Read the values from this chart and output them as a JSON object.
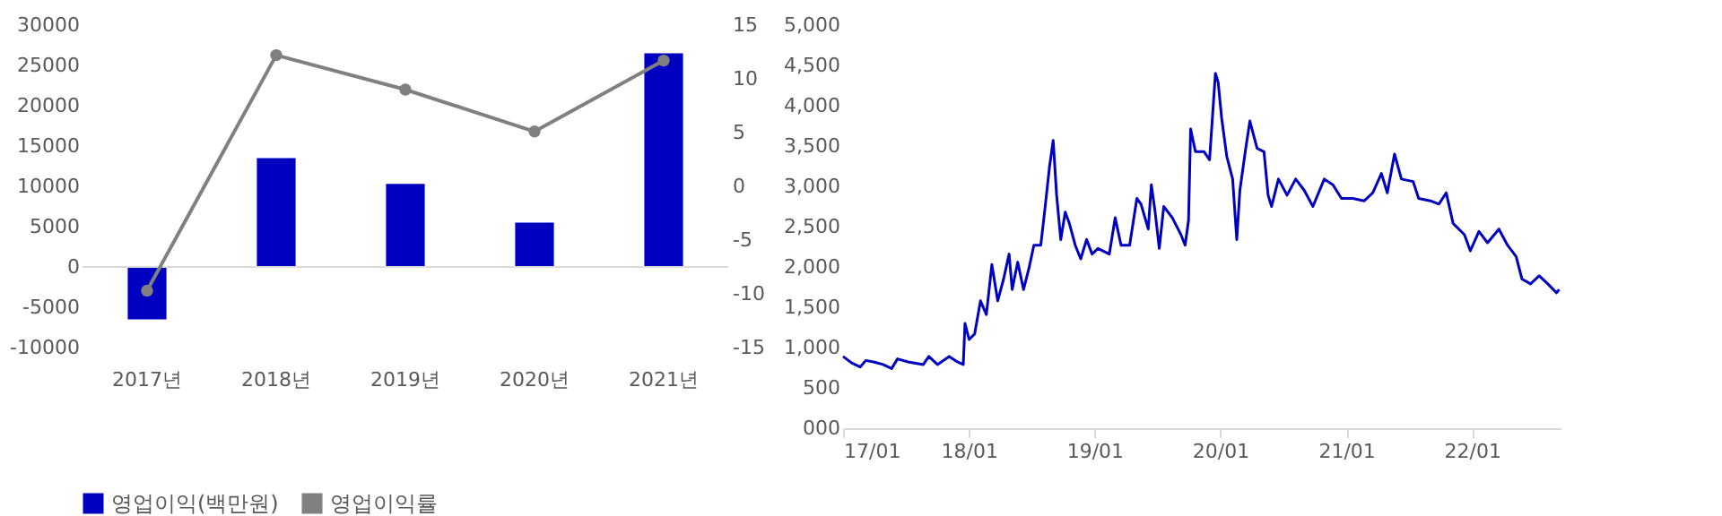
{
  "chart_data": [
    {
      "type": "bar",
      "categories": [
        "2017년",
        "2018년",
        "2019년",
        "2020년",
        "2021년"
      ],
      "series": [
        {
          "name": "영업이익(백만원)",
          "type": "bar",
          "color": "#0000c0",
          "values": [
            -6500,
            13500,
            10300,
            5500,
            26500
          ]
        },
        {
          "name": "영업이익률",
          "type": "line",
          "axis": "y2",
          "color": "#808080",
          "values": [
            -9.7,
            12.2,
            9.0,
            5.1,
            11.7
          ]
        }
      ],
      "marker": "circle",
      "ylim": [
        -10000,
        30000
      ],
      "yticks": [
        -10000,
        -5000,
        0,
        5000,
        10000,
        15000,
        20000,
        25000,
        30000
      ],
      "y2lim": [
        -15,
        15
      ],
      "y2ticks": [
        -15,
        -10,
        -5,
        0,
        5,
        10,
        15
      ],
      "ref_lines": [
        {
          "axis": "y",
          "value": 0,
          "color": "#d9d9d9"
        }
      ],
      "legend": "bottom",
      "grid": false
    },
    {
      "type": "line",
      "color": "#0000c0",
      "grid": false,
      "legend": false,
      "x": [
        "2017-01-01",
        "2017-01-26",
        "2017-02-20",
        "2017-03-08",
        "2017-04-02",
        "2017-04-27",
        "2017-05-22",
        "2017-06-08",
        "2017-07-11",
        "2017-08-22",
        "2017-09-07",
        "2017-10-02",
        "2017-11-05",
        "2017-11-30",
        "2017-12-16",
        "2017-12-21",
        "2018-01-02",
        "2018-01-18",
        "2018-02-04",
        "2018-02-21",
        "2018-03-09",
        "2018-03-26",
        "2018-04-12",
        "2018-04-28",
        "2018-05-07",
        "2018-05-23",
        "2018-06-09",
        "2018-06-25",
        "2018-07-09",
        "2018-07-29",
        "2018-08-09",
        "2018-08-23",
        "2018-09-03",
        "2018-09-13",
        "2018-09-25",
        "2018-10-08",
        "2018-10-20",
        "2018-11-06",
        "2018-11-22",
        "2018-12-09",
        "2018-12-25",
        "2019-01-11",
        "2019-02-13",
        "2019-03-02",
        "2019-03-19",
        "2019-04-13",
        "2019-05-04",
        "2019-05-16",
        "2019-06-06",
        "2019-06-15",
        "2019-06-26",
        "2019-07-08",
        "2019-07-21",
        "2019-08-15",
        "2019-09-09",
        "2019-09-21",
        "2019-10-01",
        "2019-10-07",
        "2019-10-21",
        "2019-11-15",
        "2019-12-01",
        "2019-12-18",
        "2019-12-26",
        "2020-01-05",
        "2020-01-20",
        "2020-02-06",
        "2020-02-18",
        "2020-02-27",
        "2020-03-15",
        "2020-03-27",
        "2020-04-17",
        "2020-05-07",
        "2020-05-19",
        "2020-05-29",
        "2020-06-18",
        "2020-07-13",
        "2020-08-07",
        "2020-09-01",
        "2020-09-26",
        "2020-10-29",
        "2020-11-23",
        "2020-12-18",
        "2021-01-20",
        "2021-02-22",
        "2021-03-19",
        "2021-04-13",
        "2021-04-30",
        "2021-05-21",
        "2021-06-10",
        "2021-07-14",
        "2021-07-30",
        "2021-09-02",
        "2021-09-27",
        "2021-10-18",
        "2021-11-07",
        "2021-12-10",
        "2021-12-27",
        "2022-01-21",
        "2022-02-15",
        "2022-03-20",
        "2022-04-14",
        "2022-05-09",
        "2022-05-26",
        "2022-06-20",
        "2022-07-15",
        "2022-08-09",
        "2022-09-03",
        "2022-09-11"
      ],
      "values": [
        890,
        810,
        760,
        840,
        820,
        790,
        740,
        860,
        820,
        790,
        890,
        790,
        890,
        820,
        790,
        1300,
        1100,
        1170,
        1580,
        1410,
        2030,
        1580,
        1850,
        2160,
        1720,
        2060,
        1720,
        1990,
        2270,
        2270,
        2680,
        3230,
        3570,
        2890,
        2340,
        2680,
        2540,
        2270,
        2100,
        2340,
        2160,
        2230,
        2160,
        2610,
        2270,
        2270,
        2850,
        2780,
        2470,
        3020,
        2680,
        2230,
        2750,
        2610,
        2400,
        2270,
        2580,
        3710,
        3430,
        3430,
        3330,
        4400,
        4290,
        3850,
        3370,
        3090,
        2340,
        2950,
        3470,
        3810,
        3470,
        3430,
        2890,
        2750,
        3090,
        2890,
        3090,
        2950,
        2750,
        3090,
        3020,
        2850,
        2850,
        2820,
        2920,
        3160,
        2920,
        3400,
        3090,
        3060,
        2850,
        2820,
        2780,
        2920,
        2540,
        2400,
        2200,
        2440,
        2300,
        2470,
        2270,
        2130,
        1850,
        1790,
        1890,
        1790,
        1680,
        1720
      ],
      "xlim": [
        "2017-01-01",
        "2022-09-15"
      ],
      "xticks": [
        {
          "value": "2017-01-01",
          "label": "17/01"
        },
        {
          "value": "2018-01-01",
          "label": "18/01"
        },
        {
          "value": "2019-01-01",
          "label": "19/01"
        },
        {
          "value": "2020-01-01",
          "label": "20/01"
        },
        {
          "value": "2021-01-01",
          "label": "21/01"
        },
        {
          "value": "2022-01-01",
          "label": "22/01"
        }
      ],
      "ylim": [
        0,
        5000
      ],
      "yticks": [
        {
          "value": 0,
          "label": "000"
        },
        500,
        {
          "value": 1000,
          "label": "1,000"
        },
        {
          "value": 1500,
          "label": "1,500"
        },
        {
          "value": 2000,
          "label": "2,000"
        },
        {
          "value": 2500,
          "label": "2,500"
        },
        {
          "value": 3000,
          "label": "3,000"
        },
        {
          "value": 3500,
          "label": "3,500"
        },
        {
          "value": 4000,
          "label": "4,000"
        },
        {
          "value": 4500,
          "label": "4,500"
        },
        {
          "value": 5000,
          "label": "5,000"
        }
      ]
    }
  ]
}
